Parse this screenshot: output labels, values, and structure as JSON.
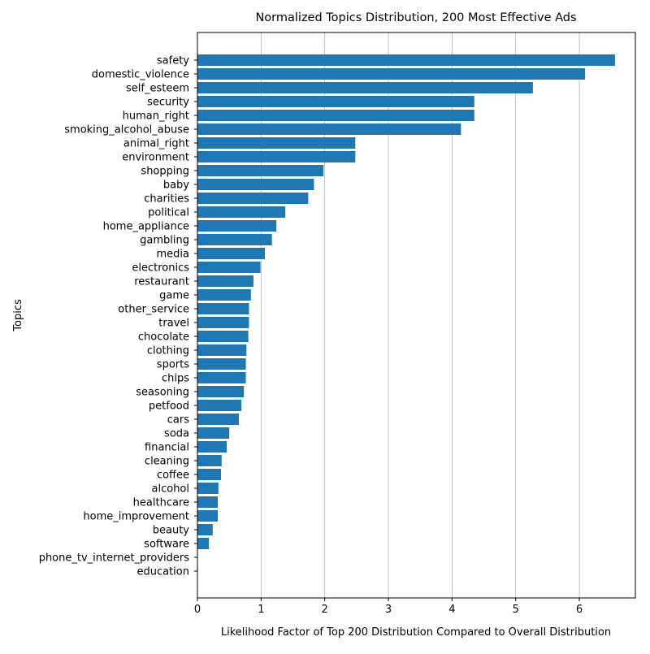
{
  "chart_data": {
    "type": "bar",
    "orientation": "horizontal",
    "title": "Normalized Topics Distribution, 200 Most Effective Ads",
    "xlabel": "Likelihood Factor of Top 200 Distribution Compared to Overall Distribution",
    "ylabel": "Topics",
    "xlim": [
      0,
      6.88
    ],
    "xticks": [
      "0",
      "1",
      "2",
      "3",
      "4",
      "5",
      "6"
    ],
    "grid": "vertical",
    "bar_color": "#1f77b4",
    "categories": [
      "safety",
      "domestic_violence",
      "self_esteem",
      "security",
      "human_right",
      "smoking_alcohol_abuse",
      "animal_right",
      "environment",
      "shopping",
      "baby",
      "charities",
      "political",
      "home_appliance",
      "gambling",
      "media",
      "electronics",
      "restaurant",
      "game",
      "other_service",
      "travel",
      "chocolate",
      "clothing",
      "sports",
      "chips",
      "seasoning",
      "petfood",
      "cars",
      "soda",
      "financial",
      "cleaning",
      "coffee",
      "alcohol",
      "healthcare",
      "home_improvement",
      "beauty",
      "software",
      "phone_tv_internet_providers",
      "education"
    ],
    "values": [
      6.56,
      6.09,
      5.27,
      4.35,
      4.35,
      4.14,
      2.48,
      2.48,
      1.98,
      1.83,
      1.74,
      1.38,
      1.24,
      1.17,
      1.06,
      0.99,
      0.88,
      0.84,
      0.81,
      0.81,
      0.8,
      0.77,
      0.76,
      0.76,
      0.73,
      0.69,
      0.65,
      0.5,
      0.46,
      0.38,
      0.37,
      0.33,
      0.32,
      0.32,
      0.24,
      0.18,
      0.0,
      0.0
    ]
  }
}
